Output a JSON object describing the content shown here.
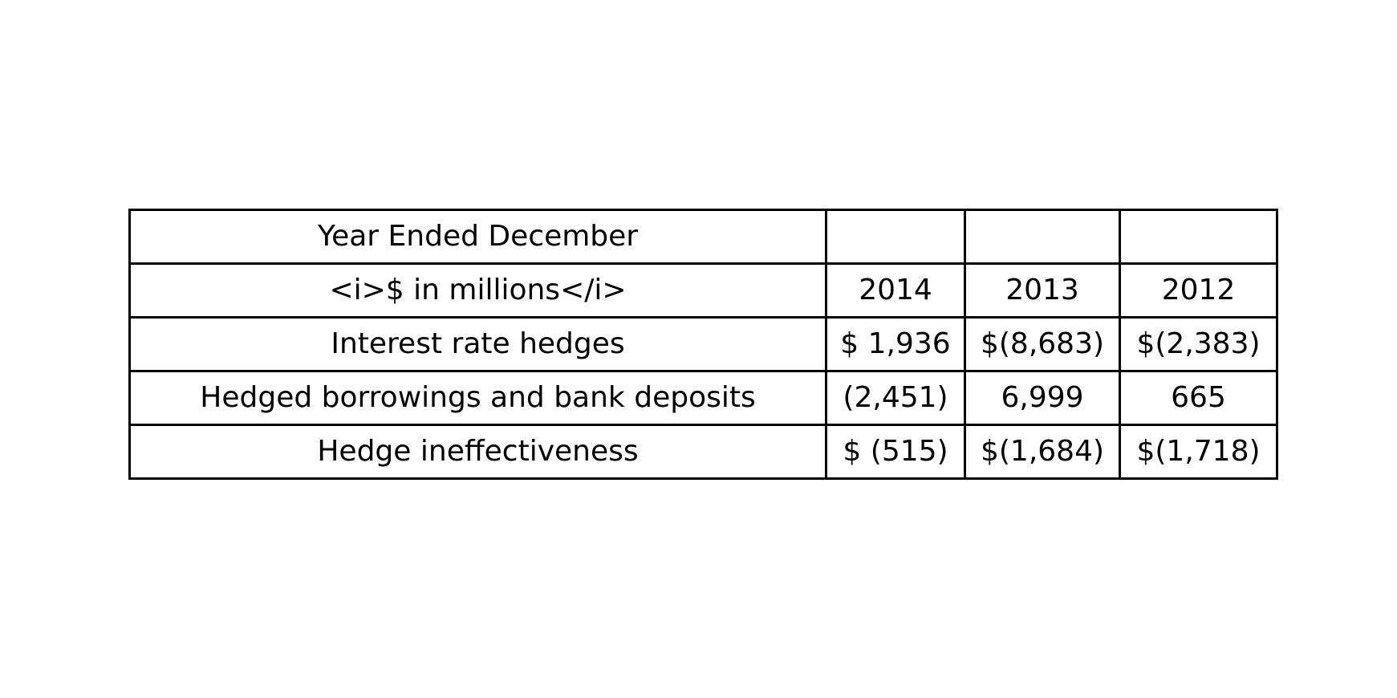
{
  "table": {
    "header_row": [
      "Year Ended December",
      "",
      "",
      ""
    ],
    "unit_row": [
      "<i>$ in millions</i>",
      "2014",
      "2013",
      "2012"
    ],
    "rows": [
      [
        "Interest rate hedges",
        "$ 1,936",
        "$(8,683)",
        "$(2,383)"
      ],
      [
        "Hedged borrowings and bank deposits",
        "(2,451)",
        "6,999",
        "665"
      ],
      [
        "Hedge ineffectiveness",
        "$ (515)",
        "$(1,684)",
        "$(1,718)"
      ]
    ]
  }
}
